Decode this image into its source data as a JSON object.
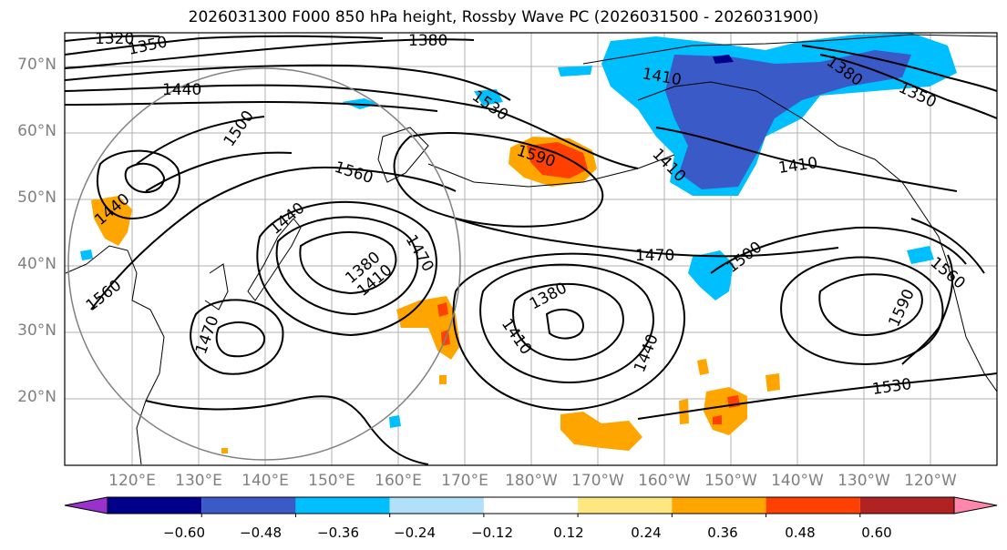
{
  "title": "2026031300 F000 850 hPa height, Rossby Wave PC (2026031500 - 2026031900)",
  "map": {
    "lat_labels": [
      "70°N",
      "60°N",
      "50°N",
      "40°N",
      "30°N",
      "20°N"
    ],
    "lon_labels": [
      "120°E",
      "130°E",
      "140°E",
      "150°E",
      "160°E",
      "170°E",
      "180°W",
      "170°W",
      "160°W",
      "150°W",
      "140°W",
      "130°W",
      "120°W"
    ],
    "contour_labels": [
      "1320",
      "1350",
      "1380",
      "1410",
      "1440",
      "1470",
      "1500",
      "1530",
      "1560",
      "1590"
    ]
  },
  "colorbar": {
    "ticks": [
      "−0.60",
      "−0.48",
      "−0.36",
      "−0.24",
      "−0.12",
      "0.12",
      "0.24",
      "0.36",
      "0.48",
      "0.60"
    ],
    "colors": [
      "#9932cc",
      "#00008b",
      "#3a5bc7",
      "#00bfff",
      "#b0e0fa",
      "#ffffff",
      "#ffe680",
      "#ffa500",
      "#ff4000",
      "#b22222",
      "#ff88aa"
    ]
  }
}
